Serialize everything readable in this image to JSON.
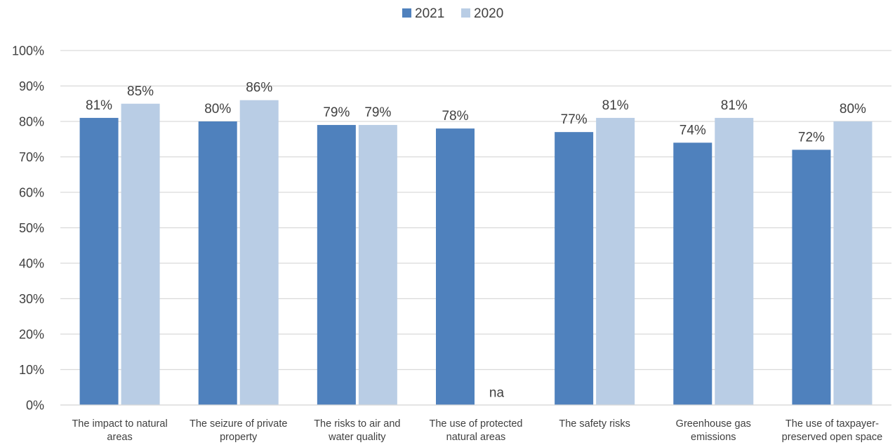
{
  "chart_data": {
    "type": "bar",
    "categories": [
      [
        "The impact to natural",
        "areas"
      ],
      [
        "The seizure of private",
        "property"
      ],
      [
        "The risks to air and",
        "water quality"
      ],
      [
        "The use of protected",
        "natural areas"
      ],
      [
        "The safety risks"
      ],
      [
        "Greenhouse gas",
        "emissions"
      ],
      [
        "The use of taxpayer-",
        "preserved open space"
      ]
    ],
    "series": [
      {
        "name": "2021",
        "color": "#4f81bd",
        "values": [
          81,
          80,
          79,
          78,
          77,
          74,
          72
        ],
        "labels": [
          "81%",
          "80%",
          "79%",
          "78%",
          "77%",
          "74%",
          "72%"
        ]
      },
      {
        "name": "2020",
        "color": "#b9cde5",
        "values": [
          85,
          86,
          79,
          null,
          81,
          81,
          80
        ],
        "labels": [
          "85%",
          "86%",
          "79%",
          "na",
          "81%",
          "81%",
          "80%"
        ]
      }
    ],
    "y_ticks": [
      "0%",
      "10%",
      "20%",
      "30%",
      "40%",
      "50%",
      "60%",
      "70%",
      "80%",
      "90%",
      "100%"
    ],
    "ylim": [
      0,
      100
    ],
    "grid": true,
    "legend_position": "top-center",
    "gridline_color": "#d9d9d9",
    "text_color": "#404040"
  }
}
